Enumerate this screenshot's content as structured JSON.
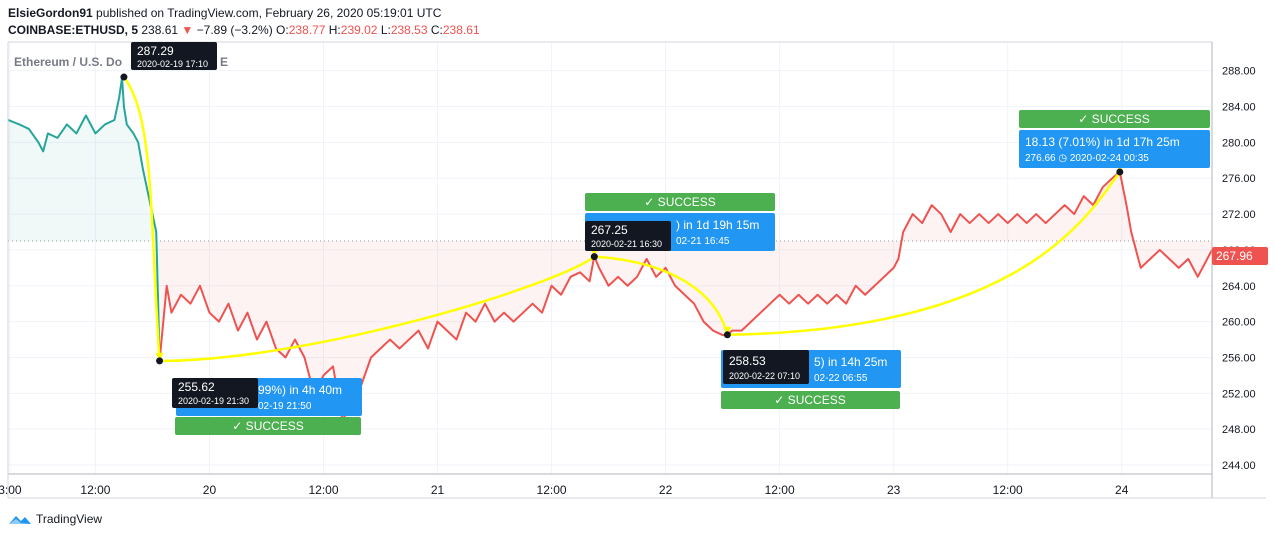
{
  "header": {
    "author": "ElsieGordon91",
    "published": "published on TradingView.com, February 26, 2020 05:19:01 UTC",
    "symbol": "COINBASE:ETHUSD, 5",
    "price": "238.61",
    "change_arrow": "▼",
    "change": "−7.89 (−3.2%)",
    "o_label": "O:",
    "o": "238.77",
    "h_label": "H:",
    "h": "239.02",
    "l_label": "L:",
    "l": "238.53",
    "c_label": "C:",
    "c": "238.61"
  },
  "watermark": "Ethereum / U.S. Do",
  "watermark_tail": "E",
  "footer": {
    "brand": "TradingView"
  },
  "colors": {
    "up": "#26a69a",
    "down": "#ef5350",
    "path": "#ffff00",
    "success": "#4caf50",
    "box": "#2196f3",
    "tag": "#131722"
  },
  "chart_data": {
    "type": "line",
    "ylim": [
      243,
      291.2
    ],
    "yticks": [
      "288.00",
      "284.00",
      "280.00",
      "276.00",
      "272.00",
      "268.00",
      "264.00",
      "260.00",
      "256.00",
      "252.00",
      "248.00",
      "244.00"
    ],
    "ytick_values": [
      288,
      284,
      280,
      276,
      272,
      268,
      264,
      260,
      256,
      252,
      248,
      244
    ],
    "xticks": [
      "3:00",
      "12:00",
      "20",
      "12:00",
      "21",
      "12:00",
      "22",
      "12:00",
      "23",
      "12:00",
      "24"
    ],
    "xtick_hours": [
      3,
      12,
      24,
      36,
      48,
      60,
      72,
      84,
      96,
      108,
      120
    ],
    "xlim_hours": [
      2.8,
      129.5
    ],
    "reference_price": 269.0,
    "last_price_label": "267.96",
    "last_price": 267.96,
    "series": [
      {
        "x": [
          2.8,
          4,
          5,
          6,
          6.5,
          7,
          8,
          9,
          10,
          11,
          12,
          13,
          14,
          14.5,
          14.8,
          15,
          15.3,
          16,
          16.5,
          17,
          17.6,
          18,
          18.4,
          18.6,
          18.75
        ],
        "y": [
          282.5,
          282,
          281.5,
          280,
          279,
          281,
          280.5,
          282,
          281,
          283,
          281,
          282,
          282.5,
          285,
          287.2,
          284,
          282,
          281,
          280,
          277,
          274,
          272,
          270,
          262,
          255.6
        ]
      },
      {
        "x": [
          18.75,
          19.5,
          20,
          21,
          22,
          23,
          24,
          25,
          26,
          27,
          28,
          29,
          30,
          31,
          32,
          33,
          34,
          35,
          36,
          37,
          38,
          39,
          40,
          41,
          42,
          43,
          44,
          45,
          46,
          47,
          48,
          49,
          50,
          51,
          52,
          53,
          54,
          55,
          56,
          57,
          58,
          59,
          60,
          61,
          62,
          63,
          64,
          64.5
        ],
        "y": [
          255.6,
          264,
          261,
          263,
          262,
          264,
          261,
          260,
          262,
          259,
          261,
          258,
          260,
          257,
          256,
          258,
          256,
          252,
          254,
          255,
          249,
          251,
          253,
          256,
          257,
          258,
          257,
          258,
          259,
          257,
          260,
          259,
          258,
          261,
          260,
          262,
          260,
          261,
          260,
          261,
          262,
          261,
          264,
          263,
          265,
          265.5,
          264.5,
          267.3
        ]
      },
      {
        "x": [
          64.5,
          65,
          66,
          67,
          68,
          69,
          70,
          71,
          72,
          73,
          74,
          75,
          76,
          77,
          78,
          78.5,
          79,
          80,
          81,
          82,
          83,
          84,
          85,
          86,
          87,
          88,
          89,
          90,
          91,
          92,
          93,
          94,
          95,
          96,
          96.5,
          97,
          98,
          99,
          100,
          101,
          102,
          103,
          104,
          105,
          106,
          107,
          108,
          109,
          110,
          111,
          112,
          113,
          114,
          115,
          116,
          117,
          118,
          119,
          119.8
        ],
        "y": [
          267.3,
          266,
          264,
          265,
          264,
          265,
          267,
          265,
          266,
          264,
          263,
          262,
          260,
          259,
          258.5,
          258.5,
          259,
          259,
          260,
          261,
          262,
          263,
          262,
          263,
          262,
          263,
          262,
          263,
          262,
          264,
          263,
          264,
          265,
          266,
          267,
          270,
          272,
          271,
          273,
          272,
          270,
          272,
          271,
          272,
          271,
          272,
          271,
          272,
          271,
          272,
          271,
          272,
          273,
          272,
          274,
          273,
          275,
          276,
          276.7
        ]
      },
      {
        "x": [
          119.8,
          120.5,
          121,
          121.5,
          122,
          123,
          124,
          125,
          126,
          127,
          128,
          129,
          129.5
        ],
        "y": [
          276.7,
          273,
          270,
          268,
          266,
          267,
          268,
          267,
          266,
          267,
          265,
          267,
          268
        ]
      }
    ]
  },
  "annotations": [
    {
      "price": "287.29",
      "time": "2020-02-19 17:10",
      "hour": 15.0,
      "value": 287.29
    },
    {
      "price": "255.62",
      "time": "2020-02-19 21:30",
      "hour": 18.75,
      "value": 255.62
    },
    {
      "price": "267.25",
      "time": "2020-02-21 16:30",
      "hour": 64.5,
      "value": 267.25
    },
    {
      "price": "258.53",
      "time": "2020-02-22 07:10",
      "hour": 78.5,
      "value": 258.53
    }
  ],
  "results": [
    {
      "status": "✓ SUCCESS",
      "main": "99%) in 4h 40m",
      "sub": "02-19  21:50"
    },
    {
      "status": "✓ SUCCESS",
      "main": ") in 1d 19h 15m",
      "sub": "02-21  16:45"
    },
    {
      "status": "✓ SUCCESS",
      "main": "5) in 14h 25m",
      "sub": "02-22  06:55"
    },
    {
      "status": "✓ SUCCESS",
      "main": "18.13 (7.01%) in 1d 17h 25m",
      "sub": "276.66 ◷ 2020-02-24  00:35"
    }
  ]
}
